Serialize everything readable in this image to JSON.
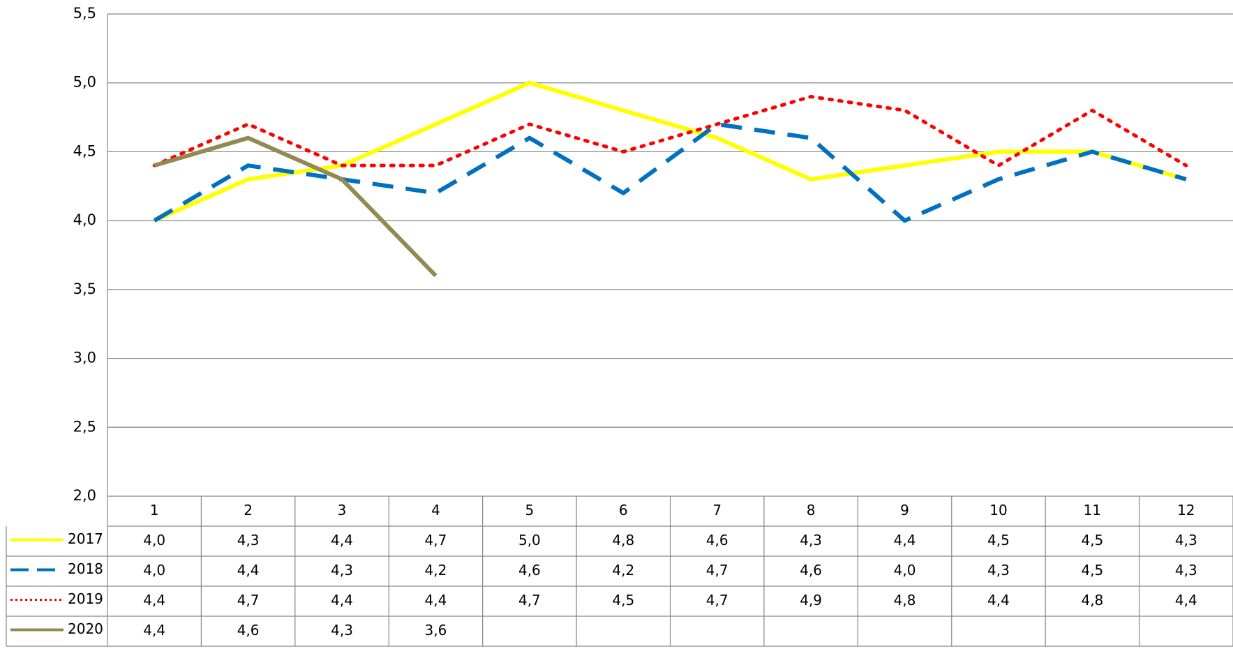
{
  "chart_data": {
    "type": "line",
    "categories": [
      "1",
      "2",
      "3",
      "4",
      "5",
      "6",
      "7",
      "8",
      "9",
      "10",
      "11",
      "12"
    ],
    "series": [
      {
        "name": "2017",
        "color": "#ffff00",
        "dash": "solid",
        "values": [
          4.0,
          4.3,
          4.4,
          4.7,
          5.0,
          4.8,
          4.6,
          4.3,
          4.4,
          4.5,
          4.5,
          4.3
        ],
        "value_labels": [
          "4,0",
          "4,3",
          "4,4",
          "4,7",
          "5,0",
          "4,8",
          "4,6",
          "4,3",
          "4,4",
          "4,5",
          "4,5",
          "4,3"
        ]
      },
      {
        "name": "2018",
        "color": "#0070c0",
        "dash": "dashed",
        "values": [
          4.0,
          4.4,
          4.3,
          4.2,
          4.6,
          4.2,
          4.7,
          4.6,
          4.0,
          4.3,
          4.5,
          4.3
        ],
        "value_labels": [
          "4,0",
          "4,4",
          "4,3",
          "4,2",
          "4,6",
          "4,2",
          "4,7",
          "4,6",
          "4,0",
          "4,3",
          "4,5",
          "4,3"
        ]
      },
      {
        "name": "2019",
        "color": "#ff0000",
        "dash": "dotted",
        "values": [
          4.4,
          4.7,
          4.4,
          4.4,
          4.7,
          4.5,
          4.7,
          4.9,
          4.8,
          4.4,
          4.8,
          4.4
        ],
        "value_labels": [
          "4,4",
          "4,7",
          "4,4",
          "4,4",
          "4,7",
          "4,5",
          "4,7",
          "4,9",
          "4,8",
          "4,4",
          "4,8",
          "4,4"
        ]
      },
      {
        "name": "2020",
        "color": "#938953",
        "dash": "solid",
        "values": [
          4.4,
          4.6,
          4.3,
          3.6,
          null,
          null,
          null,
          null,
          null,
          null,
          null,
          null
        ],
        "value_labels": [
          "4,4",
          "4,6",
          "4,3",
          "3,6",
          null,
          null,
          null,
          null,
          null,
          null,
          null,
          null
        ]
      }
    ],
    "ylim": [
      2.0,
      5.5
    ],
    "yticks": [
      {
        "value": 2.0,
        "label": "2,0"
      },
      {
        "value": 2.5,
        "label": "2,5"
      },
      {
        "value": 3.0,
        "label": "3,0"
      },
      {
        "value": 3.5,
        "label": "3,5"
      },
      {
        "value": 4.0,
        "label": "4,0"
      },
      {
        "value": 4.5,
        "label": "4,5"
      },
      {
        "value": 5.0,
        "label": "5,0"
      },
      {
        "value": 5.5,
        "label": "5,5"
      }
    ],
    "grid": true
  }
}
